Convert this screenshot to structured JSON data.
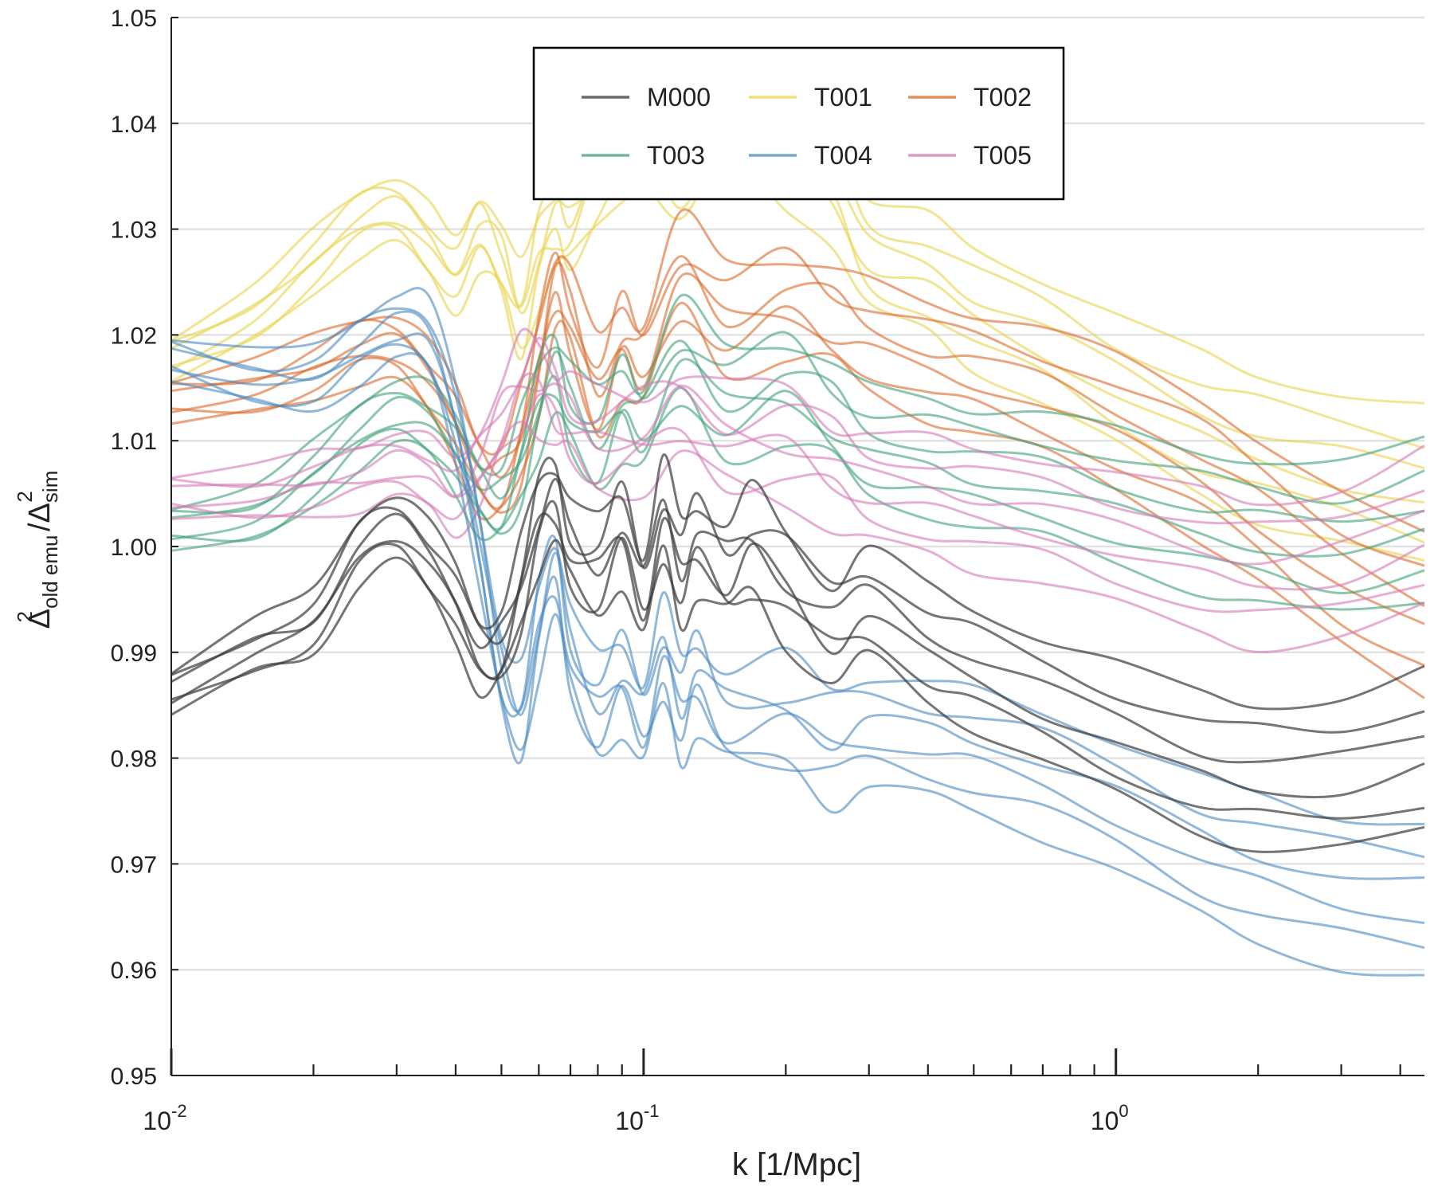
{
  "chart_data": {
    "type": "line",
    "xscale": "log",
    "xlim": [
      0.01,
      4.5
    ],
    "ylim": [
      0.95,
      1.05
    ],
    "xlabel": "k [1/Mpc]",
    "ylabel": {
      "top_base": "Δ",
      "top_sup": "2",
      "top_sub": "old emu",
      "slash": "/",
      "bottom_base": "Δ",
      "bottom_sup": "2",
      "bottom_sub": "sim"
    },
    "yticks": [
      0.95,
      0.96,
      0.97,
      0.98,
      0.99,
      1.0,
      1.01,
      1.02,
      1.03,
      1.04,
      1.05
    ],
    "ytick_labels": [
      "0.95",
      "0.96",
      "0.97",
      "0.98",
      "0.99",
      "1.00",
      "1.01",
      "1.02",
      "1.03",
      "1.04",
      "1.05"
    ],
    "xticks_major": [
      {
        "value": 0.01,
        "base": "10",
        "exp": "-2"
      },
      {
        "value": 0.1,
        "base": "10",
        "exp": "-1"
      },
      {
        "value": 1,
        "base": "10",
        "exp": "0"
      }
    ],
    "xticks_minor": [
      0.02,
      0.03,
      0.04,
      0.05,
      0.06,
      0.07,
      0.08,
      0.09,
      0.2,
      0.3,
      0.4,
      0.5,
      0.6,
      0.7,
      0.8,
      0.9,
      2,
      3,
      4
    ],
    "grid": "horizontal",
    "legend": {
      "position": "top-center",
      "columns": 3,
      "order": [
        "M000",
        "T001",
        "T002",
        "T003",
        "T004",
        "T005"
      ]
    },
    "series": [
      {
        "name": "M000",
        "color": "#3a3a3a",
        "values": [
          [
            0.01,
            0.9865
          ],
          [
            0.015,
            0.9905
          ],
          [
            0.02,
            0.993
          ],
          [
            0.025,
            1.0
          ],
          [
            0.03,
            1.002
          ],
          [
            0.035,
            0.999
          ],
          [
            0.04,
            0.995
          ],
          [
            0.045,
            0.99
          ],
          [
            0.05,
            0.9905
          ],
          [
            0.055,
            0.996
          ],
          [
            0.06,
            1.003
          ],
          [
            0.065,
            1.005
          ],
          [
            0.07,
            1.0
          ],
          [
            0.08,
            0.998
          ],
          [
            0.09,
            1.002
          ],
          [
            0.1,
            0.996
          ],
          [
            0.11,
            1.003
          ],
          [
            0.12,
            0.998
          ],
          [
            0.13,
            1.001
          ],
          [
            0.15,
            0.998
          ],
          [
            0.17,
            1.0
          ],
          [
            0.2,
            0.997
          ],
          [
            0.25,
            0.993
          ],
          [
            0.3,
            0.995
          ],
          [
            0.4,
            0.991
          ],
          [
            0.5,
            0.989
          ],
          [
            0.7,
            0.986
          ],
          [
            1.0,
            0.983
          ],
          [
            1.5,
            0.98
          ],
          [
            2.0,
            0.979
          ],
          [
            3.0,
            0.979
          ],
          [
            4.5,
            0.981
          ]
        ]
      },
      {
        "name": "T001",
        "color": "#e8d44d",
        "values": [
          [
            0.01,
            1.018
          ],
          [
            0.015,
            1.022
          ],
          [
            0.02,
            1.027
          ],
          [
            0.025,
            1.031
          ],
          [
            0.03,
            1.032
          ],
          [
            0.035,
            1.029
          ],
          [
            0.04,
            1.026
          ],
          [
            0.045,
            1.03
          ],
          [
            0.05,
            1.027
          ],
          [
            0.055,
            1.022
          ],
          [
            0.06,
            1.028
          ],
          [
            0.065,
            1.031
          ],
          [
            0.07,
            1.03
          ],
          [
            0.08,
            1.035
          ],
          [
            0.1,
            1.04
          ],
          [
            0.12,
            1.035
          ],
          [
            0.15,
            1.04
          ],
          [
            0.2,
            1.038
          ],
          [
            0.25,
            1.035
          ],
          [
            0.3,
            1.028
          ],
          [
            0.4,
            1.026
          ],
          [
            0.5,
            1.023
          ],
          [
            0.7,
            1.02
          ],
          [
            1.0,
            1.016
          ],
          [
            1.5,
            1.012
          ],
          [
            2.0,
            1.01
          ],
          [
            3.0,
            1.008
          ],
          [
            4.5,
            1.006
          ]
        ]
      },
      {
        "name": "T002",
        "color": "#d9692a",
        "values": [
          [
            0.01,
            1.014
          ],
          [
            0.015,
            1.015
          ],
          [
            0.02,
            1.017
          ],
          [
            0.025,
            1.019
          ],
          [
            0.03,
            1.019
          ],
          [
            0.035,
            1.016
          ],
          [
            0.04,
            1.012
          ],
          [
            0.045,
            1.007
          ],
          [
            0.05,
            1.006
          ],
          [
            0.055,
            1.01
          ],
          [
            0.06,
            1.018
          ],
          [
            0.065,
            1.025
          ],
          [
            0.07,
            1.022
          ],
          [
            0.08,
            1.015
          ],
          [
            0.09,
            1.02
          ],
          [
            0.1,
            1.018
          ],
          [
            0.12,
            1.026
          ],
          [
            0.15,
            1.022
          ],
          [
            0.2,
            1.024
          ],
          [
            0.25,
            1.022
          ],
          [
            0.3,
            1.02
          ],
          [
            0.4,
            1.018
          ],
          [
            0.5,
            1.017
          ],
          [
            0.7,
            1.015
          ],
          [
            1.0,
            1.012
          ],
          [
            1.5,
            1.008
          ],
          [
            2.0,
            1.004
          ],
          [
            3.0,
            0.998
          ],
          [
            4.5,
            0.994
          ]
        ]
      },
      {
        "name": "T003",
        "color": "#3fa07a",
        "values": [
          [
            0.01,
            1.002
          ],
          [
            0.015,
            1.003
          ],
          [
            0.02,
            1.007
          ],
          [
            0.025,
            1.011
          ],
          [
            0.03,
            1.013
          ],
          [
            0.035,
            1.012
          ],
          [
            0.04,
            1.009
          ],
          [
            0.045,
            1.005
          ],
          [
            0.05,
            1.004
          ],
          [
            0.055,
            1.008
          ],
          [
            0.06,
            1.014
          ],
          [
            0.065,
            1.017
          ],
          [
            0.07,
            1.013
          ],
          [
            0.08,
            1.01
          ],
          [
            0.09,
            1.014
          ],
          [
            0.1,
            1.012
          ],
          [
            0.12,
            1.018
          ],
          [
            0.15,
            1.014
          ],
          [
            0.2,
            1.016
          ],
          [
            0.25,
            1.013
          ],
          [
            0.3,
            1.01
          ],
          [
            0.4,
            1.009
          ],
          [
            0.5,
            1.008
          ],
          [
            0.7,
            1.007
          ],
          [
            1.0,
            1.005
          ],
          [
            1.5,
            1.003
          ],
          [
            2.0,
            1.002
          ],
          [
            3.0,
            1.001
          ],
          [
            4.5,
            1.003
          ]
        ]
      },
      {
        "name": "T004",
        "color": "#4a88c0",
        "values": [
          [
            0.01,
            1.018
          ],
          [
            0.015,
            1.016
          ],
          [
            0.02,
            1.016
          ],
          [
            0.025,
            1.019
          ],
          [
            0.03,
            1.021
          ],
          [
            0.035,
            1.02
          ],
          [
            0.04,
            1.012
          ],
          [
            0.045,
            1.0
          ],
          [
            0.05,
            0.988
          ],
          [
            0.055,
            0.984
          ],
          [
            0.06,
            0.993
          ],
          [
            0.065,
            0.998
          ],
          [
            0.07,
            0.99
          ],
          [
            0.08,
            0.985
          ],
          [
            0.09,
            0.988
          ],
          [
            0.1,
            0.984
          ],
          [
            0.11,
            0.99
          ],
          [
            0.12,
            0.985
          ],
          [
            0.13,
            0.988
          ],
          [
            0.15,
            0.984
          ],
          [
            0.2,
            0.984
          ],
          [
            0.25,
            0.982
          ],
          [
            0.3,
            0.983
          ],
          [
            0.4,
            0.982
          ],
          [
            0.5,
            0.981
          ],
          [
            0.7,
            0.979
          ],
          [
            1.0,
            0.976
          ],
          [
            1.5,
            0.972
          ],
          [
            2.0,
            0.97
          ],
          [
            3.0,
            0.968
          ],
          [
            4.5,
            0.967
          ]
        ]
      },
      {
        "name": "T005",
        "color": "#d47ab5",
        "values": [
          [
            0.01,
            1.005
          ],
          [
            0.015,
            1.005
          ],
          [
            0.02,
            1.006
          ],
          [
            0.025,
            1.007
          ],
          [
            0.03,
            1.008
          ],
          [
            0.035,
            1.007
          ],
          [
            0.04,
            1.005
          ],
          [
            0.045,
            1.008
          ],
          [
            0.05,
            1.012
          ],
          [
            0.055,
            1.015
          ],
          [
            0.06,
            1.016
          ],
          [
            0.065,
            1.014
          ],
          [
            0.07,
            1.012
          ],
          [
            0.08,
            1.01
          ],
          [
            0.1,
            1.011
          ],
          [
            0.12,
            1.013
          ],
          [
            0.15,
            1.01
          ],
          [
            0.2,
            1.01
          ],
          [
            0.25,
            1.008
          ],
          [
            0.3,
            1.006
          ],
          [
            0.4,
            1.005
          ],
          [
            0.5,
            1.004
          ],
          [
            0.7,
            1.003
          ],
          [
            1.0,
            1.001
          ],
          [
            1.5,
            0.999
          ],
          [
            2.0,
            0.998
          ],
          [
            3.0,
            0.999
          ],
          [
            4.5,
            1.002
          ]
        ]
      }
    ]
  }
}
